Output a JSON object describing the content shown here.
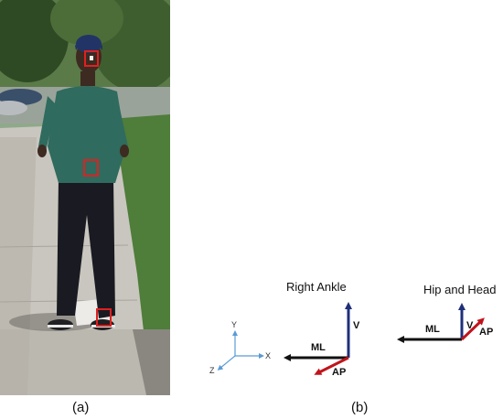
{
  "panel_a": {
    "caption": "(a)",
    "sensor_color": "#e02020"
  },
  "panel_b": {
    "caption": "(b)",
    "reference_frame": {
      "y": "Y",
      "x": "X",
      "z": "Z",
      "color": "#5b9bd5"
    },
    "right_ankle": {
      "title": "Right Ankle",
      "v": "V",
      "ml": "ML",
      "ap": "AP"
    },
    "hip_head": {
      "title": "Hip and Head",
      "v": "V",
      "ml": "ML",
      "ap": "AP"
    },
    "colors": {
      "vertical": "#1f2f7a",
      "mediolateral": "#111111",
      "anteroposterior": "#c0141c"
    }
  }
}
